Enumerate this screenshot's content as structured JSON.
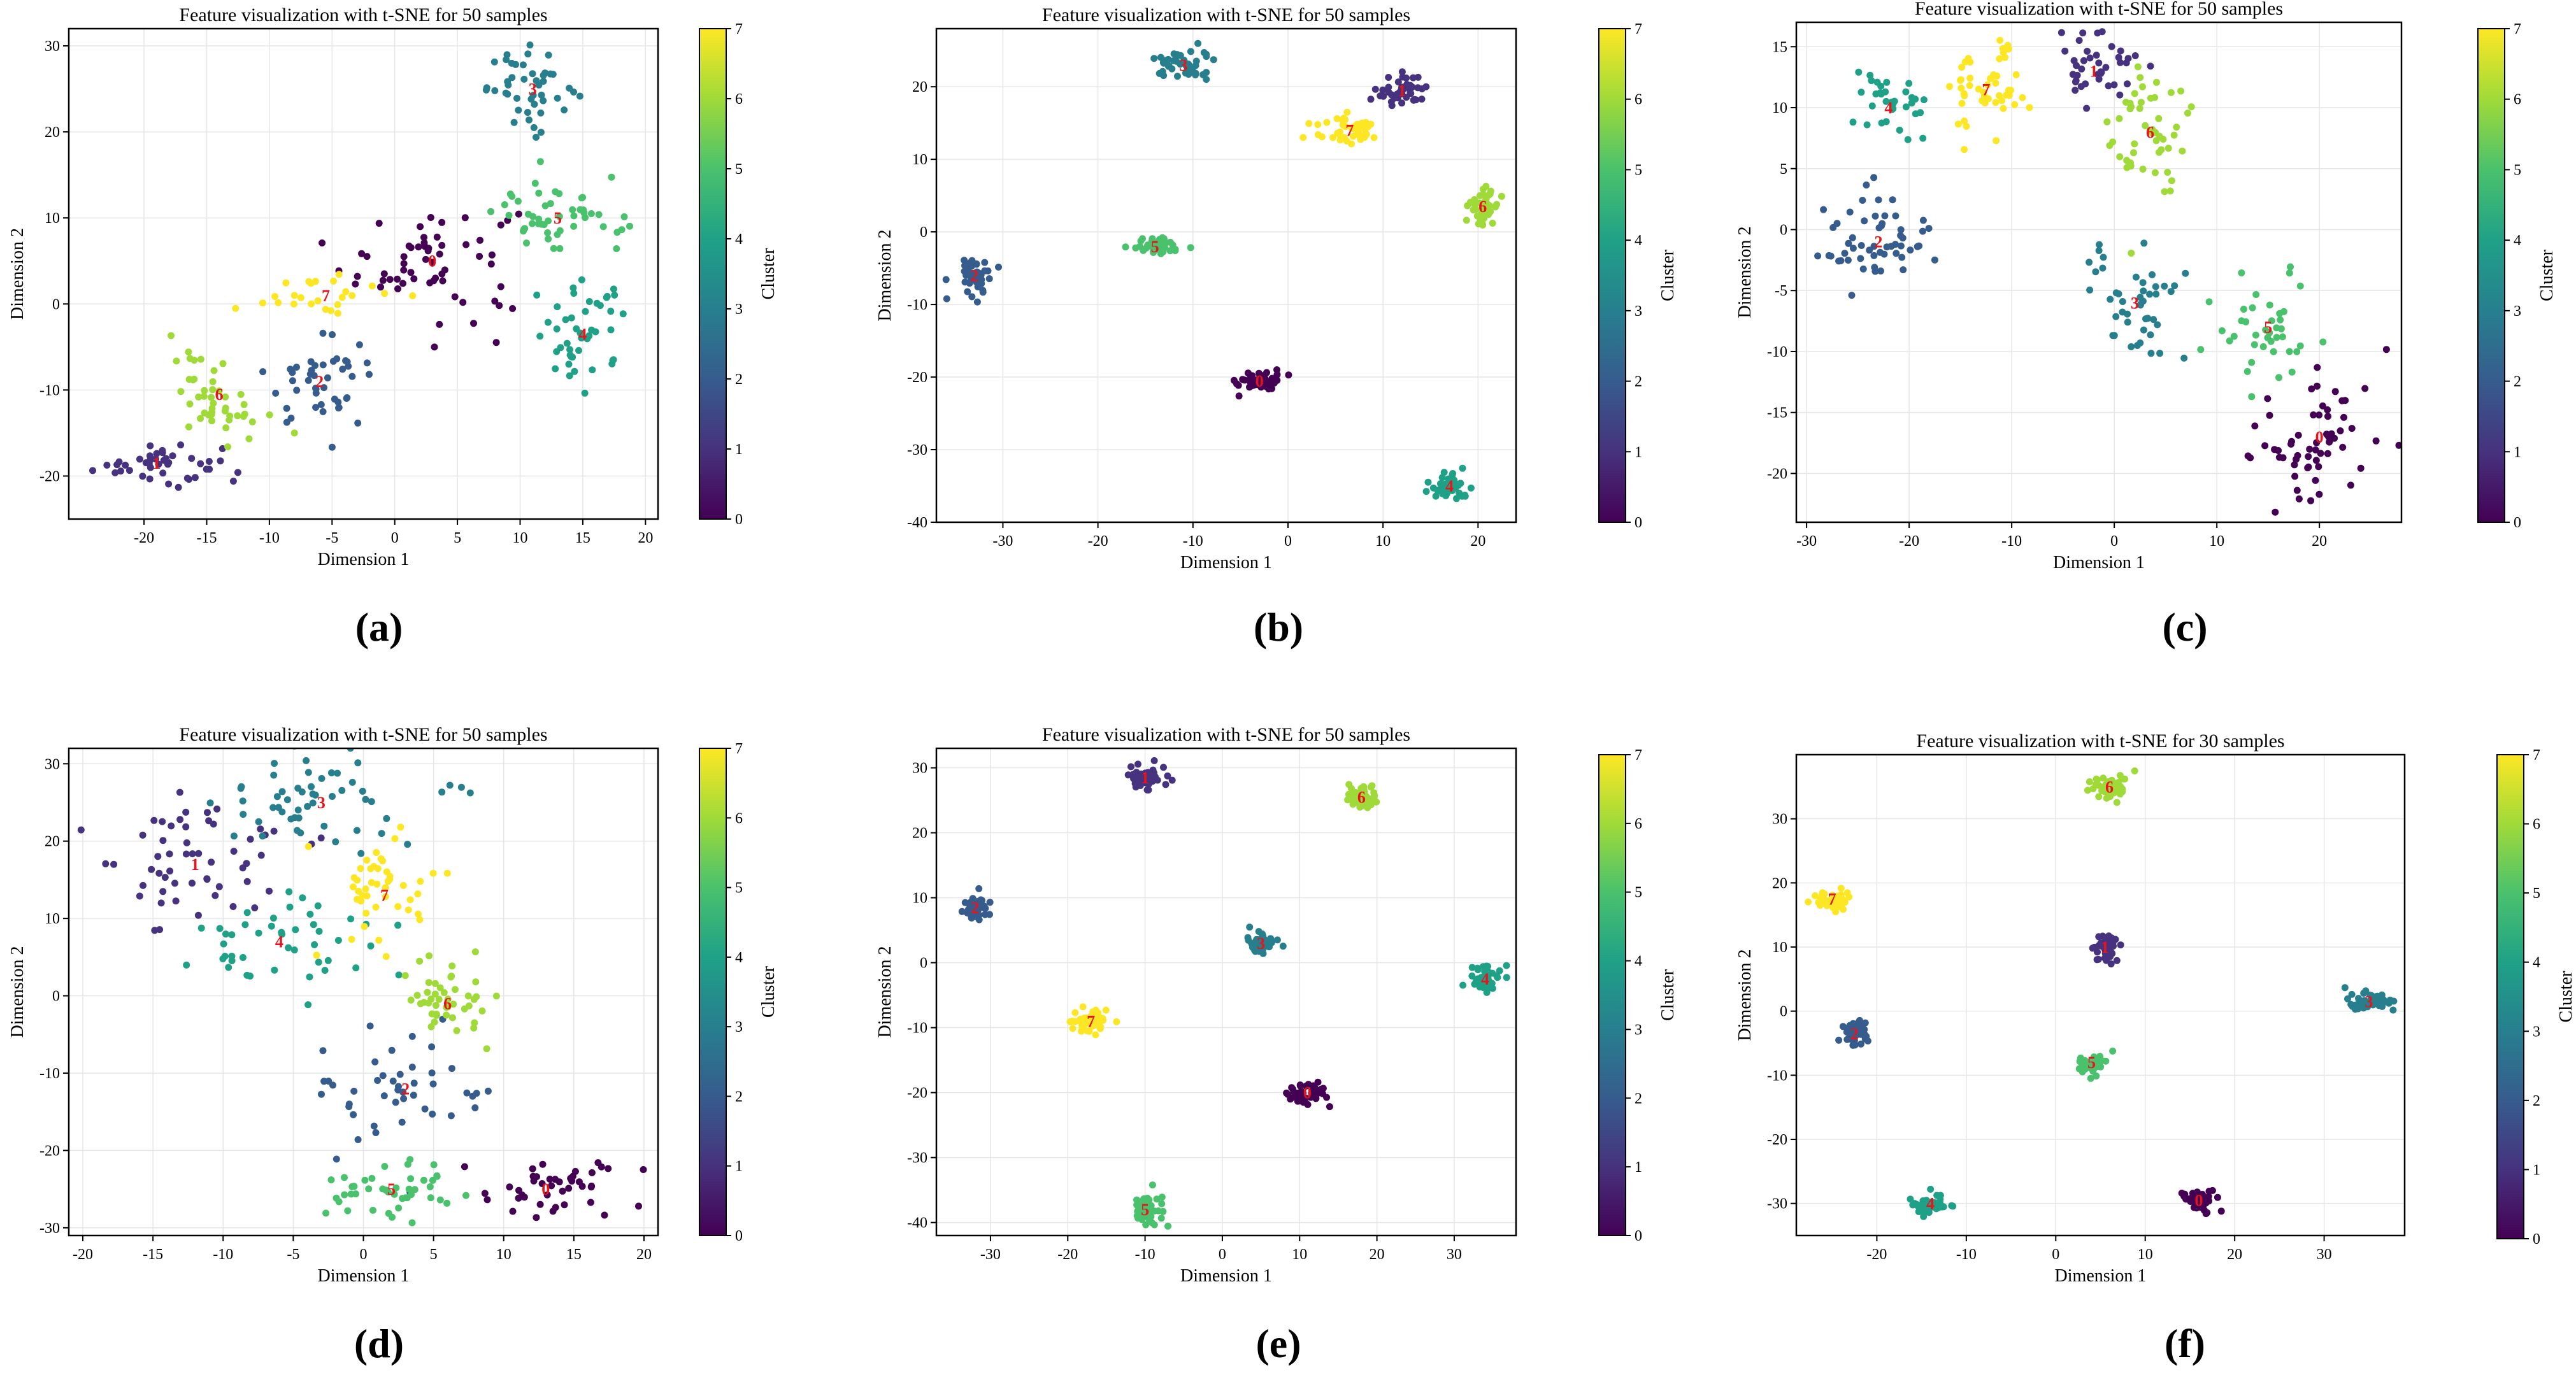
{
  "chart_data": [
    {
      "type": "scatter",
      "panel": "(a)",
      "title": "Feature visualization with t-SNE for 50 samples",
      "xlabel": "Dimension 1",
      "ylabel": "Dimension 2",
      "colorbar_label": "Cluster",
      "colorbar_range": [
        0,
        7
      ],
      "colorbar_ticks": [
        0,
        1,
        2,
        3,
        4,
        5,
        6,
        7
      ],
      "xlim": [
        -26,
        21
      ],
      "ylim": [
        -25,
        32
      ],
      "grid": true,
      "xticks": [
        -20,
        -15,
        -10,
        -5,
        0,
        5,
        10,
        15,
        20
      ],
      "yticks": [
        -20,
        -10,
        0,
        10,
        20,
        30
      ],
      "clusters": [
        {
          "label": "0",
          "x": 3,
          "y": 5,
          "sx": 3.5,
          "sy": 3.5,
          "n": 60
        },
        {
          "label": "1",
          "x": -19,
          "y": -18.5,
          "sx": 2.5,
          "sy": 1.3,
          "n": 45
        },
        {
          "label": "2",
          "x": -6,
          "y": -9,
          "sx": 2.2,
          "sy": 2.5,
          "n": 45
        },
        {
          "label": "3",
          "x": 11,
          "y": 25,
          "sx": 1.8,
          "sy": 2.2,
          "n": 45
        },
        {
          "label": "4",
          "x": 15,
          "y": -3.5,
          "sx": 2,
          "sy": 3,
          "n": 45
        },
        {
          "label": "5",
          "x": 13,
          "y": 10,
          "sx": 2.5,
          "sy": 2.2,
          "n": 50
        },
        {
          "label": "6",
          "x": -14,
          "y": -10.5,
          "sx": 2,
          "sy": 2.5,
          "n": 45
        },
        {
          "label": "7",
          "x": -5.5,
          "y": 1,
          "sx": 2.5,
          "sy": 1.2,
          "n": 25
        }
      ]
    },
    {
      "type": "scatter",
      "panel": "(b)",
      "title": "Feature visualization with t-SNE for 50 samples",
      "xlabel": "Dimension 1",
      "ylabel": "Dimension 2",
      "colorbar_label": "Cluster",
      "colorbar_range": [
        0,
        7
      ],
      "colorbar_ticks": [
        0,
        1,
        2,
        3,
        4,
        5,
        6,
        7
      ],
      "xlim": [
        -37,
        24
      ],
      "ylim": [
        -40,
        28
      ],
      "grid": true,
      "xticks": [
        -30,
        -20,
        -10,
        0,
        10,
        20
      ],
      "yticks": [
        -40,
        -30,
        -20,
        -10,
        0,
        10,
        20
      ],
      "clusters": [
        {
          "label": "0",
          "x": -3,
          "y": -20.5,
          "sx": 1.2,
          "sy": 0.7,
          "n": 45
        },
        {
          "label": "1",
          "x": 12,
          "y": 19.5,
          "sx": 1.3,
          "sy": 1.2,
          "n": 45
        },
        {
          "label": "2",
          "x": -33,
          "y": -6,
          "sx": 0.9,
          "sy": 1.4,
          "n": 45
        },
        {
          "label": "3",
          "x": -11,
          "y": 23,
          "sx": 1.4,
          "sy": 1.2,
          "n": 45
        },
        {
          "label": "4",
          "x": 17,
          "y": -35,
          "sx": 1.1,
          "sy": 0.9,
          "n": 45
        },
        {
          "label": "5",
          "x": -14,
          "y": -2,
          "sx": 1.4,
          "sy": 0.7,
          "n": 45
        },
        {
          "label": "6",
          "x": 20.5,
          "y": 3.5,
          "sx": 0.8,
          "sy": 1.4,
          "n": 45
        },
        {
          "label": "7",
          "x": 6.5,
          "y": 14,
          "sx": 1.6,
          "sy": 1,
          "n": 45
        }
      ]
    },
    {
      "type": "scatter",
      "panel": "(c)",
      "title": "Feature visualization with t-SNE for 50 samples",
      "xlabel": "Dimension 1",
      "ylabel": "Dimension 2",
      "colorbar_label": "Cluster",
      "colorbar_range": [
        0,
        7
      ],
      "colorbar_ticks": [
        0,
        1,
        2,
        3,
        4,
        5,
        6,
        7
      ],
      "xlim": [
        -31,
        28
      ],
      "ylim": [
        -24,
        17
      ],
      "grid": true,
      "xticks": [
        -30,
        -20,
        -10,
        0,
        10,
        20
      ],
      "yticks": [
        -20,
        -15,
        -10,
        -5,
        0,
        5,
        10,
        15
      ],
      "clusters": [
        {
          "label": "0",
          "x": 20,
          "y": -17,
          "sx": 3.5,
          "sy": 2.8,
          "n": 60
        },
        {
          "label": "1",
          "x": -2,
          "y": 13,
          "sx": 2.5,
          "sy": 1.8,
          "n": 40
        },
        {
          "label": "2",
          "x": -23,
          "y": -1,
          "sx": 2.5,
          "sy": 2,
          "n": 55
        },
        {
          "label": "3",
          "x": 2,
          "y": -6,
          "sx": 2.5,
          "sy": 2.5,
          "n": 45
        },
        {
          "label": "4",
          "x": -22,
          "y": 10,
          "sx": 2,
          "sy": 1.5,
          "n": 35
        },
        {
          "label": "5",
          "x": 15,
          "y": -8,
          "sx": 2.5,
          "sy": 2.5,
          "n": 40
        },
        {
          "label": "6",
          "x": 3.5,
          "y": 8,
          "sx": 1.8,
          "sy": 3,
          "n": 50
        },
        {
          "label": "7",
          "x": -12.5,
          "y": 11.5,
          "sx": 2.5,
          "sy": 2,
          "n": 50
        }
      ]
    },
    {
      "type": "scatter",
      "panel": "(d)",
      "title": "Feature visualization with t-SNE for 50 samples",
      "xlabel": "Dimension 1",
      "ylabel": "Dimension 2",
      "colorbar_label": "Cluster",
      "colorbar_range": [
        0,
        7
      ],
      "colorbar_ticks": [
        0,
        1,
        2,
        3,
        4,
        5,
        6,
        7
      ],
      "xlim": [
        -21,
        21
      ],
      "ylim": [
        -31,
        32
      ],
      "grid": true,
      "xticks": [
        -20,
        -15,
        -10,
        -5,
        0,
        5,
        10,
        15,
        20
      ],
      "yticks": [
        -30,
        -20,
        -10,
        0,
        10,
        20,
        30
      ],
      "clusters": [
        {
          "label": "0",
          "x": 13,
          "y": -25,
          "sx": 3.5,
          "sy": 2,
          "n": 45
        },
        {
          "label": "1",
          "x": -12,
          "y": 17,
          "sx": 3.5,
          "sy": 4.5,
          "n": 55
        },
        {
          "label": "2",
          "x": 3,
          "y": -12,
          "sx": 3,
          "sy": 4,
          "n": 45
        },
        {
          "label": "3",
          "x": -3,
          "y": 25,
          "sx": 4,
          "sy": 3,
          "n": 55
        },
        {
          "label": "4",
          "x": -6,
          "y": 7,
          "sx": 3.5,
          "sy": 3.5,
          "n": 45
        },
        {
          "label": "5",
          "x": 2,
          "y": -25,
          "sx": 2.5,
          "sy": 2,
          "n": 45
        },
        {
          "label": "6",
          "x": 6,
          "y": -1,
          "sx": 1.5,
          "sy": 3,
          "n": 45
        },
        {
          "label": "7",
          "x": 1.5,
          "y": 13,
          "sx": 2.2,
          "sy": 4,
          "n": 45
        }
      ]
    },
    {
      "type": "scatter",
      "panel": "(e)",
      "title": "Feature visualization with t-SNE for 50 samples",
      "xlabel": "Dimension 1",
      "ylabel": "Dimension 2",
      "colorbar_label": "Cluster",
      "colorbar_range": [
        0,
        7
      ],
      "colorbar_ticks": [
        0,
        1,
        2,
        3,
        4,
        5,
        6,
        7
      ],
      "xlim": [
        -37,
        38
      ],
      "ylim": [
        -42,
        33
      ],
      "grid": true,
      "xticks": [
        -30,
        -20,
        -10,
        0,
        10,
        20,
        30
      ],
      "yticks": [
        -40,
        -30,
        -20,
        -10,
        0,
        10,
        20,
        30
      ],
      "clusters": [
        {
          "label": "0",
          "x": 11,
          "y": -20,
          "sx": 1.2,
          "sy": 1,
          "n": 45
        },
        {
          "label": "1",
          "x": -10,
          "y": 28.5,
          "sx": 1.2,
          "sy": 1,
          "n": 45
        },
        {
          "label": "2",
          "x": -32,
          "y": 8.5,
          "sx": 1,
          "sy": 0.9,
          "n": 45
        },
        {
          "label": "3",
          "x": 5,
          "y": 3,
          "sx": 1.1,
          "sy": 1,
          "n": 45
        },
        {
          "label": "4",
          "x": 34,
          "y": -2.5,
          "sx": 1,
          "sy": 1.1,
          "n": 45
        },
        {
          "label": "5",
          "x": -10,
          "y": -38,
          "sx": 1,
          "sy": 1.2,
          "n": 45
        },
        {
          "label": "6",
          "x": 18,
          "y": 25.5,
          "sx": 1,
          "sy": 1.1,
          "n": 45
        },
        {
          "label": "7",
          "x": -17,
          "y": -9,
          "sx": 1.2,
          "sy": 0.9,
          "n": 45
        }
      ]
    },
    {
      "type": "scatter",
      "panel": "(f)",
      "title": "Feature visualization with t-SNE for 30 samples",
      "xlabel": "Dimension 1",
      "ylabel": "Dimension 2",
      "colorbar_label": "Cluster",
      "colorbar_range": [
        0,
        7
      ],
      "colorbar_ticks": [
        0,
        1,
        2,
        3,
        4,
        5,
        6,
        7
      ],
      "xlim": [
        -29,
        39
      ],
      "ylim": [
        -35,
        40
      ],
      "grid": true,
      "xticks": [
        -20,
        -10,
        0,
        10,
        20,
        30
      ],
      "yticks": [
        -30,
        -20,
        -10,
        0,
        10,
        20,
        30
      ],
      "clusters": [
        {
          "label": "0",
          "x": 16,
          "y": -29.5,
          "sx": 1,
          "sy": 0.9,
          "n": 45
        },
        {
          "label": "1",
          "x": 5.5,
          "y": 10,
          "sx": 0.7,
          "sy": 1.3,
          "n": 45
        },
        {
          "label": "2",
          "x": -22.5,
          "y": -3.5,
          "sx": 0.8,
          "sy": 1,
          "n": 45
        },
        {
          "label": "3",
          "x": 35,
          "y": 1.5,
          "sx": 1.2,
          "sy": 0.6,
          "n": 45
        },
        {
          "label": "4",
          "x": -14,
          "y": -30,
          "sx": 1.2,
          "sy": 0.8,
          "n": 45
        },
        {
          "label": "5",
          "x": 4,
          "y": -8,
          "sx": 0.9,
          "sy": 0.7,
          "n": 45
        },
        {
          "label": "6",
          "x": 6,
          "y": 35,
          "sx": 1,
          "sy": 0.9,
          "n": 45
        },
        {
          "label": "7",
          "x": -25,
          "y": 17.5,
          "sx": 1,
          "sy": 0.9,
          "n": 45
        }
      ]
    }
  ]
}
